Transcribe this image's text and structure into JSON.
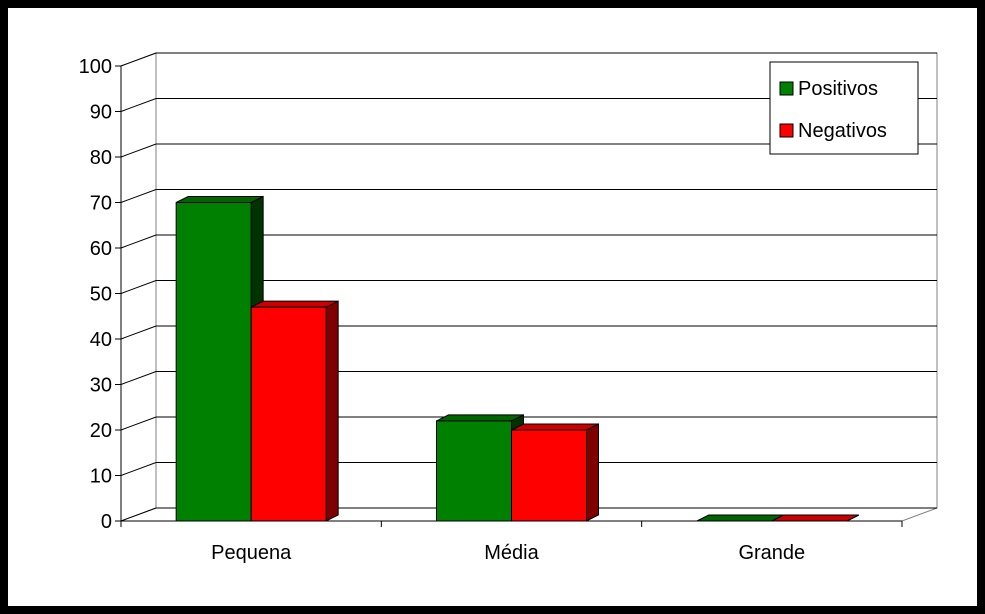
{
  "chart_data": {
    "type": "bar",
    "categories": [
      "Pequena",
      "Média",
      "Grande"
    ],
    "series": [
      {
        "name": "Positivos",
        "values": [
          70,
          22,
          0
        ],
        "color": "#008000",
        "side_color": "#003300",
        "top_color": "#006400"
      },
      {
        "name": "Negativos",
        "values": [
          47,
          20,
          0
        ],
        "color": "#ff0000",
        "side_color": "#800000",
        "top_color": "#cc0000"
      }
    ],
    "ylim": [
      0,
      100
    ],
    "yticks": [
      "0",
      "10",
      "20",
      "30",
      "40",
      "50",
      "60",
      "70",
      "80",
      "90",
      "100"
    ],
    "grid": true,
    "legend_position": "top-right",
    "style": "3d-clustered-column"
  }
}
